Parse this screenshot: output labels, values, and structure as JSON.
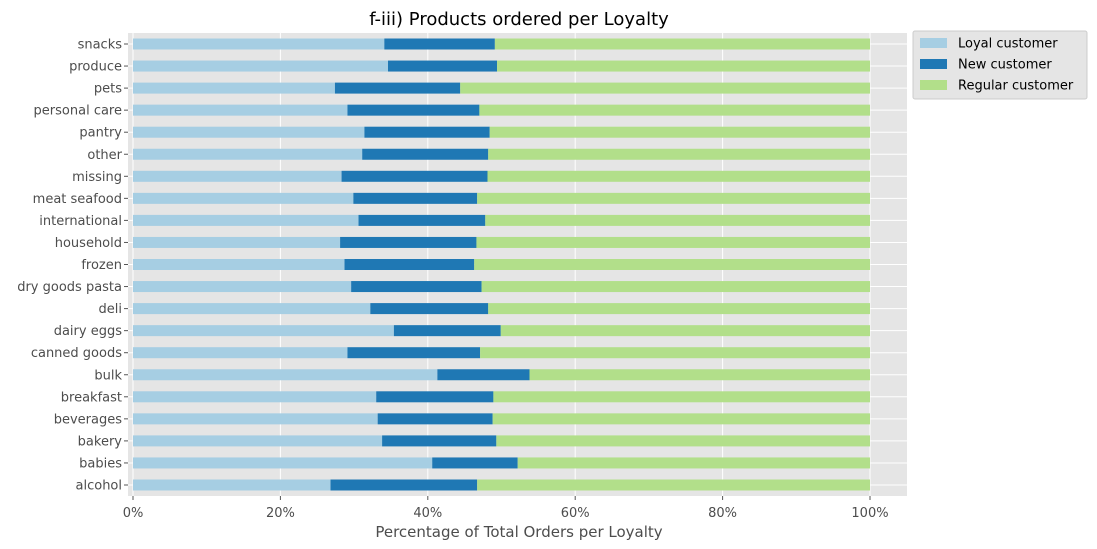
{
  "chart_data": {
    "type": "bar",
    "orientation": "horizontal",
    "stacked": true,
    "title": "f-iii) Products ordered per Loyalty",
    "xlabel": "Percentage of Total Orders per Loyalty",
    "ylabel": "",
    "xlim": [
      0,
      1.05
    ],
    "x_ticks": [
      0,
      0.2,
      0.4,
      0.6,
      0.8,
      1.0
    ],
    "x_tick_labels": [
      "0%",
      "20%",
      "40%",
      "60%",
      "80%",
      "100%"
    ],
    "grid": true,
    "legend_position": "upper-right-outside",
    "categories": [
      "alcohol",
      "babies",
      "bakery",
      "beverages",
      "breakfast",
      "bulk",
      "canned goods",
      "dairy eggs",
      "deli",
      "dry goods pasta",
      "frozen",
      "household",
      "international",
      "meat seafood",
      "missing",
      "other",
      "pantry",
      "personal care",
      "pets",
      "produce",
      "snacks"
    ],
    "series": [
      {
        "name": "Loyal customer",
        "color": "#a6cee3",
        "values": [
          0.268,
          0.406,
          0.338,
          0.332,
          0.33,
          0.413,
          0.291,
          0.354,
          0.322,
          0.296,
          0.287,
          0.281,
          0.306,
          0.299,
          0.283,
          0.311,
          0.314,
          0.291,
          0.274,
          0.346,
          0.341
        ]
      },
      {
        "name": "New customer",
        "color": "#1f78b4",
        "values": [
          0.199,
          0.116,
          0.155,
          0.156,
          0.159,
          0.125,
          0.18,
          0.145,
          0.16,
          0.177,
          0.176,
          0.185,
          0.172,
          0.168,
          0.198,
          0.171,
          0.17,
          0.179,
          0.17,
          0.148,
          0.15
        ]
      },
      {
        "name": "Regular customer",
        "color": "#b2df8a",
        "values": [
          0.533,
          0.478,
          0.507,
          0.512,
          0.511,
          0.462,
          0.529,
          0.501,
          0.518,
          0.527,
          0.537,
          0.534,
          0.522,
          0.533,
          0.519,
          0.518,
          0.516,
          0.53,
          0.556,
          0.506,
          0.509
        ]
      }
    ]
  }
}
